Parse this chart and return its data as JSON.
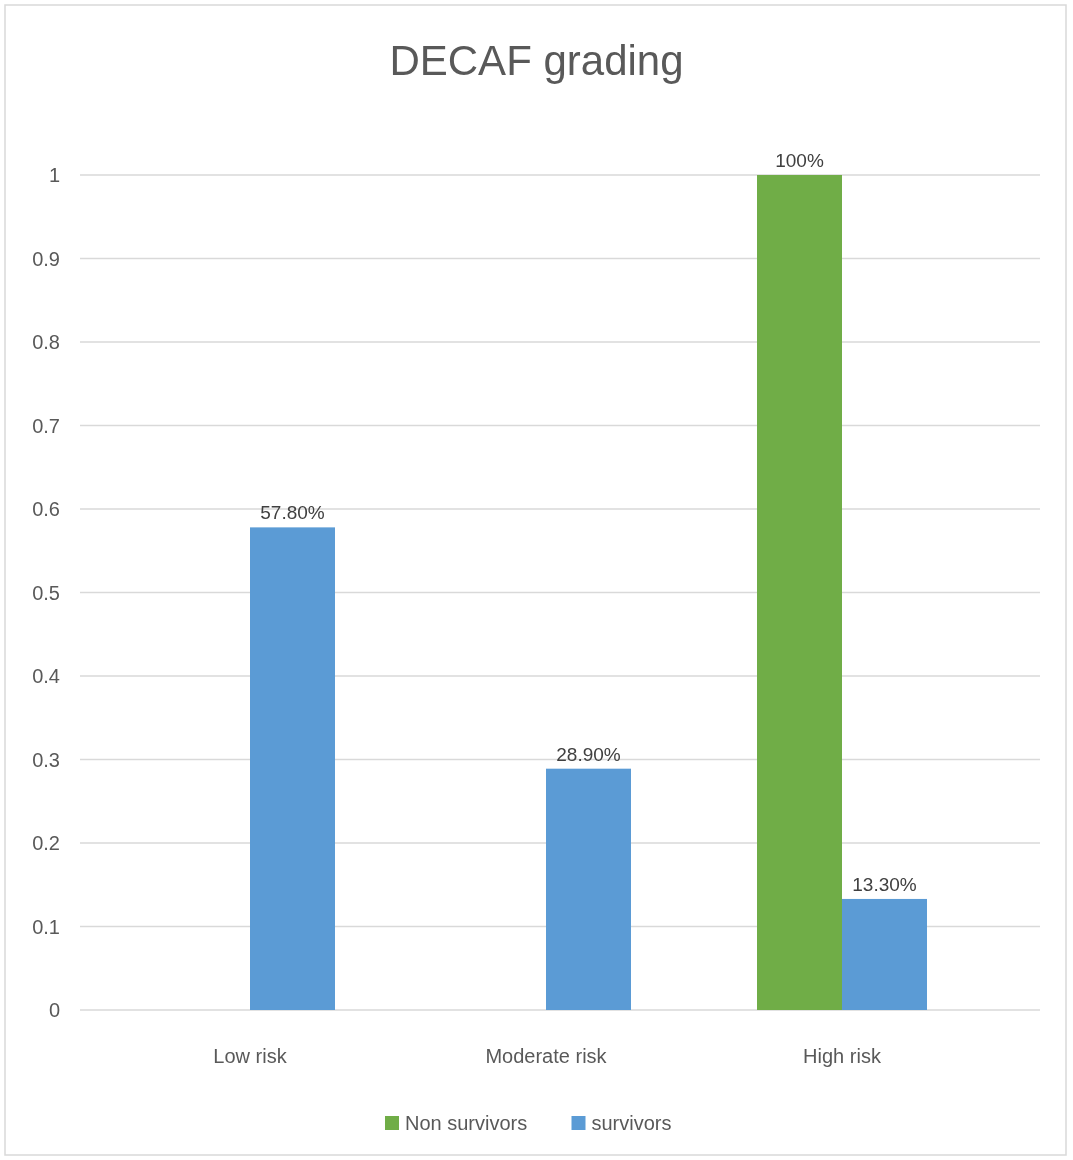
{
  "chart_data": {
    "type": "bar",
    "title": "DECAF grading",
    "categories": [
      "Low risk",
      "Moderate risk",
      "High risk"
    ],
    "series": [
      {
        "name": "Non survivors",
        "color": "#70ad47",
        "values": [
          null,
          null,
          1
        ],
        "value_labels": [
          null,
          null,
          "100%"
        ]
      },
      {
        "name": "survivors",
        "color": "#5b9bd5",
        "values": [
          0.578,
          0.289,
          0.133
        ],
        "value_labels": [
          "57.80%",
          "28.90%",
          "13.30%"
        ]
      }
    ],
    "ylim": [
      0,
      1
    ],
    "yticks": [
      0,
      0.1,
      0.2,
      0.3,
      0.4,
      0.5,
      0.6,
      0.7,
      0.8,
      0.9,
      1
    ],
    "grid": "y",
    "legend": "bottom"
  }
}
